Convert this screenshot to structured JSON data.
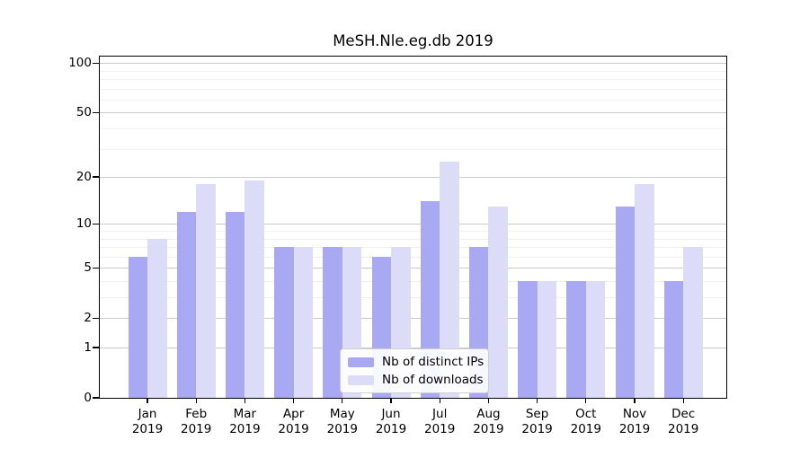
{
  "title": "MeSH.Nle.eg.db 2019",
  "chart_data": {
    "type": "bar",
    "title": "MeSH.Nle.eg.db 2019",
    "categories": [
      "Jan 2019",
      "Feb 2019",
      "Mar 2019",
      "Apr 2019",
      "May 2019",
      "Jun 2019",
      "Jul 2019",
      "Aug 2019",
      "Sep 2019",
      "Oct 2019",
      "Nov 2019",
      "Dec 2019"
    ],
    "series": [
      {
        "name": "Nb of distinct IPs",
        "color": "#a9a9f3",
        "values": [
          6,
          12,
          12,
          7,
          7,
          6,
          14,
          7,
          4,
          4,
          13,
          4
        ]
      },
      {
        "name": "Nb of downloads",
        "color": "#dcdcf9",
        "values": [
          8,
          18,
          19,
          7,
          7,
          7,
          25,
          13,
          4,
          4,
          18,
          7
        ]
      }
    ],
    "xlabel": "",
    "ylabel": "",
    "yscale": "log10(value+1)",
    "ylim": [
      0,
      110
    ],
    "y_major_ticks": [
      100,
      50,
      20,
      10,
      5,
      2,
      1,
      0
    ],
    "y_minor_gridlines": [
      3,
      4,
      6,
      7,
      8,
      9,
      30,
      40,
      60,
      70,
      80,
      90
    ],
    "grid": true,
    "legend_position": "bottom-center-inside"
  },
  "legend": {
    "items": [
      "Nb of distinct IPs",
      "Nb of downloads"
    ]
  },
  "colors": {
    "bar_distinct_ips": "#a9a9f3",
    "bar_downloads": "#dcdcf9",
    "grid_major": "#c9c9c9",
    "grid_minor": "#efefef",
    "axis": "#000000",
    "legend_border": "#cfcfcf",
    "background": "#ffffff"
  }
}
